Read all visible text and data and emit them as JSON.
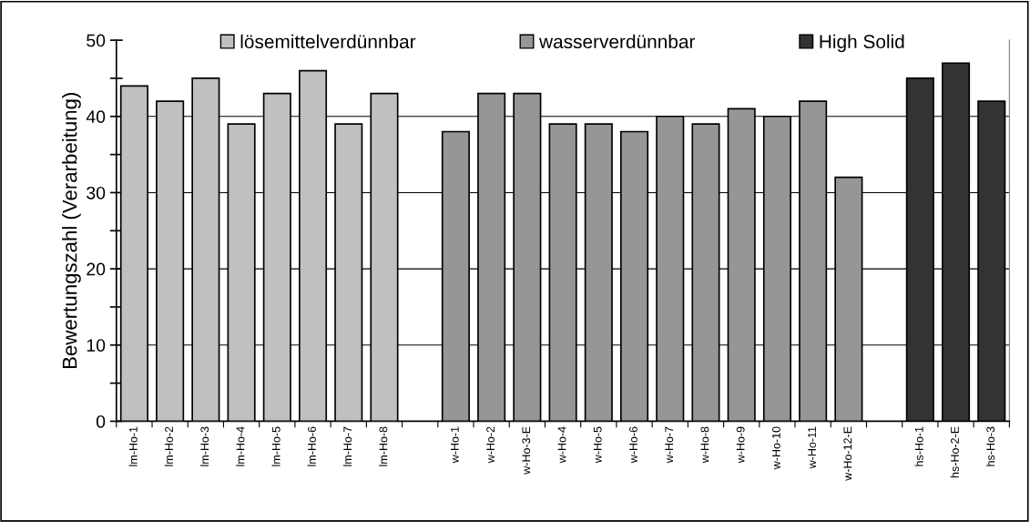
{
  "chart_data": {
    "type": "bar",
    "ylabel": "Bewertungszahl (Verarbeitung)",
    "categories": [
      "lm-Ho-1",
      "lm-Ho-2",
      "lm-Ho-3",
      "lm-Ho-4",
      "lm-Ho-5",
      "lm-Ho-6",
      "lm-Ho-7",
      "lm-Ho-8",
      null,
      "w-Ho-1",
      "w-Ho-2",
      "w-Ho-3-E",
      "w-Ho-4",
      "w-Ho-5",
      "w-Ho-6",
      "w-Ho-7",
      "w-Ho-8",
      "w-Ho-9",
      "w-Ho-10",
      "w-Ho-11",
      "w-Ho-12-E",
      null,
      "hs-Ho-1",
      "hs-Ho-2-E",
      "hs-Ho-3"
    ],
    "series": [
      {
        "name": "lösemittelverdünnbar",
        "color": "#c0c0c0",
        "values": [
          44,
          42,
          45,
          39,
          43,
          46,
          39,
          43,
          null,
          null,
          null,
          null,
          null,
          null,
          null,
          null,
          null,
          null,
          null,
          null,
          null,
          null,
          null,
          null,
          null
        ]
      },
      {
        "name": "wasserverdünnbar",
        "color": "#969696",
        "values": [
          null,
          null,
          null,
          null,
          null,
          null,
          null,
          null,
          null,
          38,
          43,
          43,
          39,
          39,
          38,
          40,
          39,
          41,
          40,
          42,
          32,
          null,
          null,
          null,
          null
        ]
      },
      {
        "name": "High Solid",
        "color": "#333333",
        "values": [
          null,
          null,
          null,
          null,
          null,
          null,
          null,
          null,
          null,
          null,
          null,
          null,
          null,
          null,
          null,
          null,
          null,
          null,
          null,
          null,
          null,
          null,
          45,
          47,
          42
        ]
      }
    ],
    "ylim": [
      0,
      50
    ],
    "yticks": [
      0,
      {
        "value": 5,
        "label": null
      },
      10,
      {
        "value": 15,
        "label": null
      },
      20,
      {
        "value": 25,
        "label": null
      },
      30,
      {
        "value": 35,
        "label": null
      },
      40,
      {
        "value": 45,
        "label": null
      },
      50
    ],
    "grid": "y",
    "legend": "top"
  }
}
